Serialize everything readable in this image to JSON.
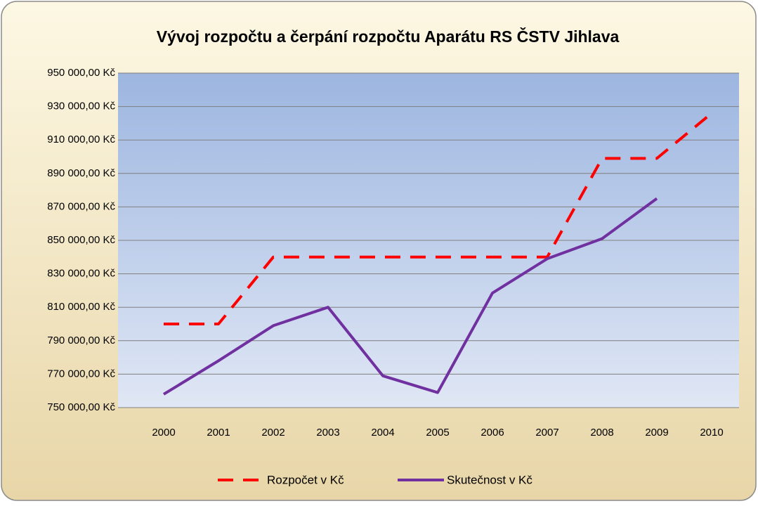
{
  "chart_data": {
    "type": "line",
    "title": "Vývoj rozpočtu a čerpání rozpočtu Aparátu RS ČSTV Jihlava",
    "categories": [
      "2000",
      "2001",
      "2002",
      "2003",
      "2004",
      "2005",
      "2006",
      "2007",
      "2008",
      "2009",
      "2010"
    ],
    "series": [
      {
        "name": "Rozpočet v Kč",
        "color": "#ff0000",
        "dashed": true,
        "values": [
          800000,
          800000,
          840000,
          840000,
          840000,
          840000,
          840000,
          840000,
          899000,
          899000,
          926000
        ]
      },
      {
        "name": "Skutečnost v Kč",
        "color": "#7030a0",
        "dashed": false,
        "values": [
          758000,
          778000,
          799000,
          810000,
          769000,
          759000,
          818500,
          839000,
          851000,
          875000,
          null
        ]
      }
    ],
    "ylim": [
      750000,
      950000
    ],
    "yticks": [
      {
        "value": 750000,
        "label": "750 000,00 Kč"
      },
      {
        "value": 770000,
        "label": "770 000,00 Kč"
      },
      {
        "value": 790000,
        "label": "790 000,00 Kč"
      },
      {
        "value": 810000,
        "label": "810 000,00 Kč"
      },
      {
        "value": 830000,
        "label": "830 000,00 Kč"
      },
      {
        "value": 850000,
        "label": "850 000,00 Kč"
      },
      {
        "value": 870000,
        "label": "870 000,00 Kč"
      },
      {
        "value": 890000,
        "label": "890 000,00 Kč"
      },
      {
        "value": 910000,
        "label": "910 000,00 Kč"
      },
      {
        "value": 930000,
        "label": "930 000,00 Kč"
      },
      {
        "value": 950000,
        "label": "950 000,00 Kč"
      }
    ],
    "grid": true,
    "legend": "bottom"
  }
}
